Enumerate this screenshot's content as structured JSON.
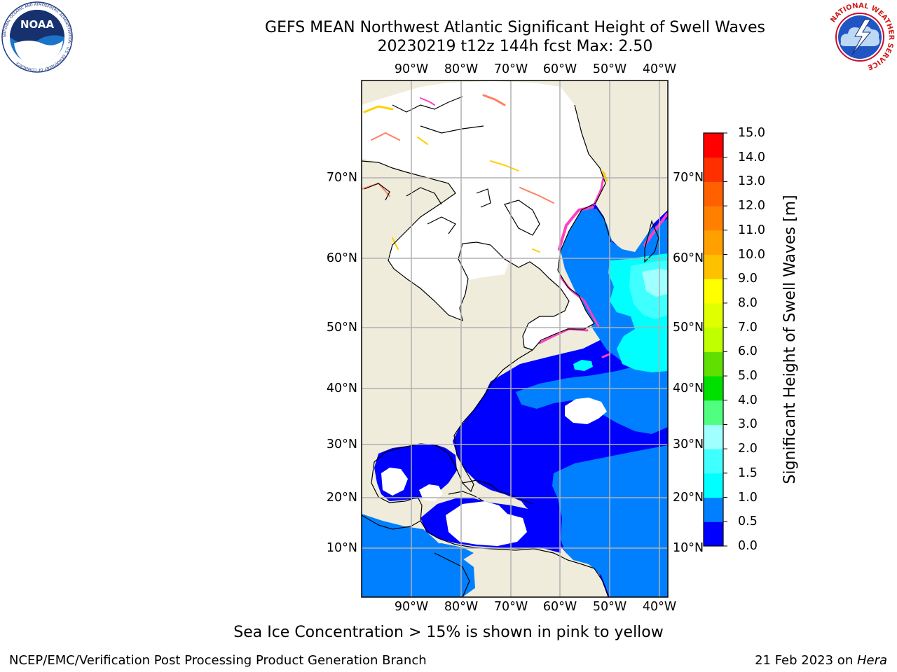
{
  "header": {
    "title_line1": "GEFS MEAN Northwest Atlantic Significant Height of Swell Waves",
    "title_line2": "20230219 t12z 144h fcst   Max: 2.50"
  },
  "logos": {
    "noaa": {
      "text": "NOAA",
      "ring_text": "NATIONAL OCEANIC AND ATMOSPHERIC ADMINISTRATION · U.S. DEPARTMENT OF COMMERCE"
    },
    "nws": {
      "ring_text": "NATIONAL WEATHER SERVICE"
    }
  },
  "map": {
    "lon_labels": [
      "90°W",
      "80°W",
      "70°W",
      "60°W",
      "50°W",
      "40°W"
    ],
    "lat_labels": [
      "70°N",
      "60°N",
      "50°N",
      "40°N",
      "30°N",
      "20°N",
      "10°N"
    ],
    "colors": {
      "land": "#efecdc",
      "ice_free_white": "#ffffff",
      "grid": "#b0b0b0",
      "coast": "#000000",
      "sea_ice": "#ff40c0"
    }
  },
  "colorbar": {
    "label": "Significant Height of Swell Waves [m]",
    "ticks": [
      "0.0",
      "0.5",
      "1.0",
      "1.5",
      "2.0",
      "3.0",
      "4.0",
      "5.0",
      "6.0",
      "7.0",
      "8.0",
      "9.0",
      "10.0",
      "11.0",
      "12.0",
      "13.0",
      "14.0",
      "15.0"
    ],
    "colors": [
      "#0000ff",
      "#0080ff",
      "#00ffff",
      "#40ffff",
      "#a0ffff",
      "#50ff80",
      "#00e000",
      "#60e000",
      "#c0ff00",
      "#e0ff00",
      "#ffff00",
      "#ffc000",
      "#ffa000",
      "#ff8000",
      "#ff6000",
      "#ff3000",
      "#ff0000"
    ]
  },
  "note": "Sea Ice Concentration > 15% is shown in pink to yellow",
  "footer": {
    "left": "NCEP/EMC/Verification Post Processing Product Generation Branch",
    "date": "21 Feb 2023 on ",
    "host": "Hera"
  }
}
